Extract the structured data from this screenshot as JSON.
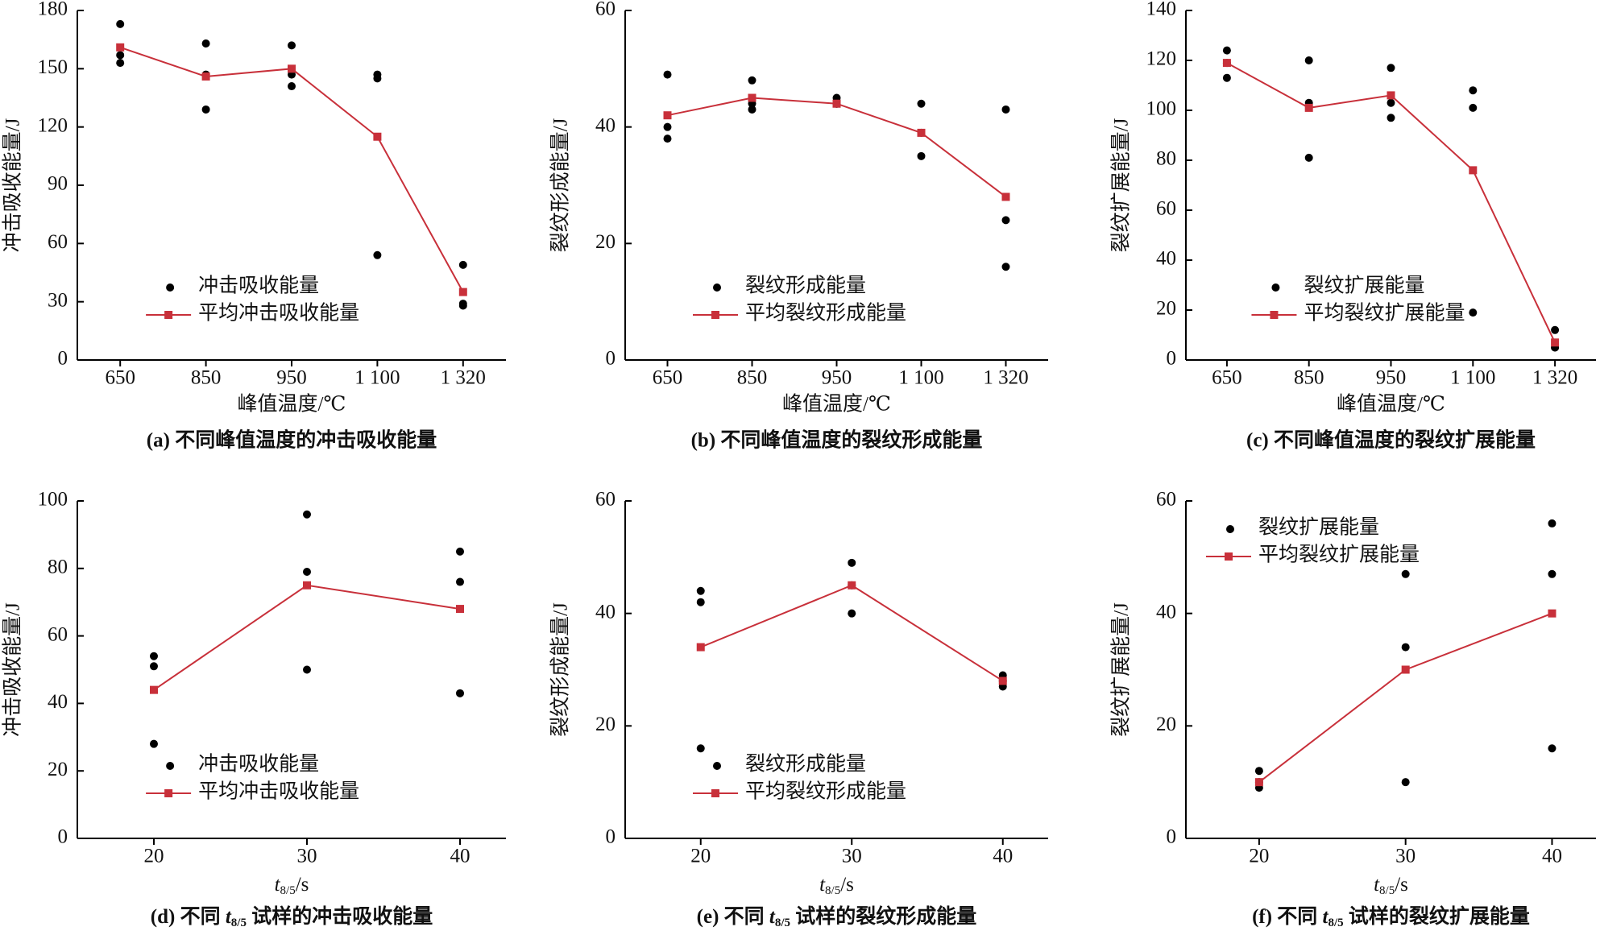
{
  "chart_data": [
    {
      "type": "scatter-line",
      "caption": "(a) 不同峰值温度的冲击吸收能量",
      "ylabel": "冲击吸收能量/J",
      "xlabel": "峰值温度/℃",
      "categories": [
        "650",
        "850",
        "950",
        "1 100",
        "1 320"
      ],
      "ylim": [
        0,
        180
      ],
      "yticks": [
        0,
        30,
        60,
        90,
        120,
        150,
        180
      ],
      "legend": "lower center",
      "series": [
        {
          "name": "冲击吸收能量",
          "color": "#000000",
          "values": [
            [
              173,
              157,
              153
            ],
            [
              163,
              147,
              129
            ],
            [
              162,
              147,
              141
            ],
            [
              147,
              145,
              54
            ],
            [
              49,
              29,
              28
            ]
          ]
        },
        {
          "name": "平均冲击吸收能量",
          "color": "#c8303a",
          "values": [
            161,
            146,
            150,
            115,
            35
          ]
        }
      ]
    },
    {
      "type": "scatter-line",
      "caption": "(b) 不同峰值温度的裂纹形成能量",
      "ylabel": "裂纹形成能量/J",
      "xlabel": "峰值温度/℃",
      "categories": [
        "650",
        "850",
        "950",
        "1 100",
        "1 320"
      ],
      "ylim": [
        0,
        60
      ],
      "yticks": [
        0,
        20,
        40,
        60
      ],
      "legend": "lower center",
      "series": [
        {
          "name": "裂纹形成能量",
          "color": "#000000",
          "values": [
            [
              49,
              40,
              38
            ],
            [
              48,
              44,
              43
            ],
            [
              45,
              44,
              44
            ],
            [
              44,
              39,
              35
            ],
            [
              43,
              24,
              16
            ]
          ]
        },
        {
          "name": "平均裂纹形成能量",
          "color": "#c8303a",
          "values": [
            42,
            45,
            44,
            39,
            28
          ]
        }
      ]
    },
    {
      "type": "scatter-line",
      "caption": "(c) 不同峰值温度的裂纹扩展能量",
      "ylabel": "裂纹扩展能量/J",
      "xlabel": "峰值温度/℃",
      "categories": [
        "650",
        "850",
        "950",
        "1 100",
        "1 320"
      ],
      "ylim": [
        0,
        140
      ],
      "yticks": [
        0,
        20,
        40,
        60,
        80,
        100,
        120,
        140
      ],
      "legend": "lower center",
      "series": [
        {
          "name": "裂纹扩展能量",
          "color": "#000000",
          "values": [
            [
              124,
              119,
              113
            ],
            [
              120,
              103,
              81
            ],
            [
              117,
              103,
              97
            ],
            [
              108,
              101,
              19
            ],
            [
              12,
              5,
              5
            ]
          ]
        },
        {
          "name": "平均裂纹扩展能量",
          "color": "#c8303a",
          "values": [
            119,
            101,
            106,
            76,
            7
          ]
        }
      ]
    },
    {
      "type": "scatter-line",
      "caption": {
        "prefix": "(d) 不同 ",
        "var": "t",
        "sub": "8/5",
        "suffix": " 试样的冲击吸收能量"
      },
      "ylabel": "冲击吸收能量/J",
      "xlabel": {
        "var": "t",
        "sub": "8/5",
        "suffix": "/s"
      },
      "x": [
        20,
        30,
        40
      ],
      "xlim": [
        15,
        43
      ],
      "xticks": [
        20,
        30,
        40
      ],
      "ylim": [
        0,
        100
      ],
      "yticks": [
        0,
        20,
        40,
        60,
        80,
        100
      ],
      "legend": "lower center",
      "series": [
        {
          "name": "冲击吸收能量",
          "color": "#000000",
          "values": [
            [
              54,
              51,
              28
            ],
            [
              96,
              79,
              50
            ],
            [
              85,
              76,
              43
            ]
          ]
        },
        {
          "name": "平均冲击吸收能量",
          "color": "#c8303a",
          "values": [
            44,
            75,
            68
          ]
        }
      ]
    },
    {
      "type": "scatter-line",
      "caption": {
        "prefix": "(e) 不同 ",
        "var": "t",
        "sub": "8/5",
        "suffix": " 试样的裂纹形成能量"
      },
      "ylabel": "裂纹形成能量/J",
      "xlabel": {
        "var": "t",
        "sub": "8/5",
        "suffix": "/s"
      },
      "x": [
        20,
        30,
        40
      ],
      "xlim": [
        15,
        43
      ],
      "xticks": [
        20,
        30,
        40
      ],
      "ylim": [
        0,
        60
      ],
      "yticks": [
        0,
        20,
        40,
        60
      ],
      "legend": "lower center",
      "series": [
        {
          "name": "裂纹形成能量",
          "color": "#000000",
          "values": [
            [
              44,
              42,
              16
            ],
            [
              49,
              45,
              40
            ],
            [
              29,
              28,
              27
            ]
          ]
        },
        {
          "name": "平均裂纹形成能量",
          "color": "#c8303a",
          "values": [
            34,
            45,
            28
          ]
        }
      ]
    },
    {
      "type": "scatter-line",
      "caption": {
        "prefix": "(f) 不同 ",
        "var": "t",
        "sub": "8/5",
        "suffix": " 试样的裂纹扩展能量"
      },
      "ylabel": "裂纹扩展能量/J",
      "xlabel": {
        "var": "t",
        "sub": "8/5",
        "suffix": "/s"
      },
      "x": [
        20,
        30,
        40
      ],
      "xlim": [
        15,
        43
      ],
      "xticks": [
        20,
        30,
        40
      ],
      "ylim": [
        0,
        60
      ],
      "yticks": [
        0,
        20,
        40,
        60
      ],
      "legend": "upper left",
      "series": [
        {
          "name": "裂纹扩展能量",
          "color": "#000000",
          "values": [
            [
              12,
              10,
              9
            ],
            [
              47,
              34,
              10
            ],
            [
              56,
              47,
              16
            ]
          ]
        },
        {
          "name": "平均裂纹扩展能量",
          "color": "#c8303a",
          "values": [
            10,
            30,
            40
          ]
        }
      ]
    }
  ]
}
